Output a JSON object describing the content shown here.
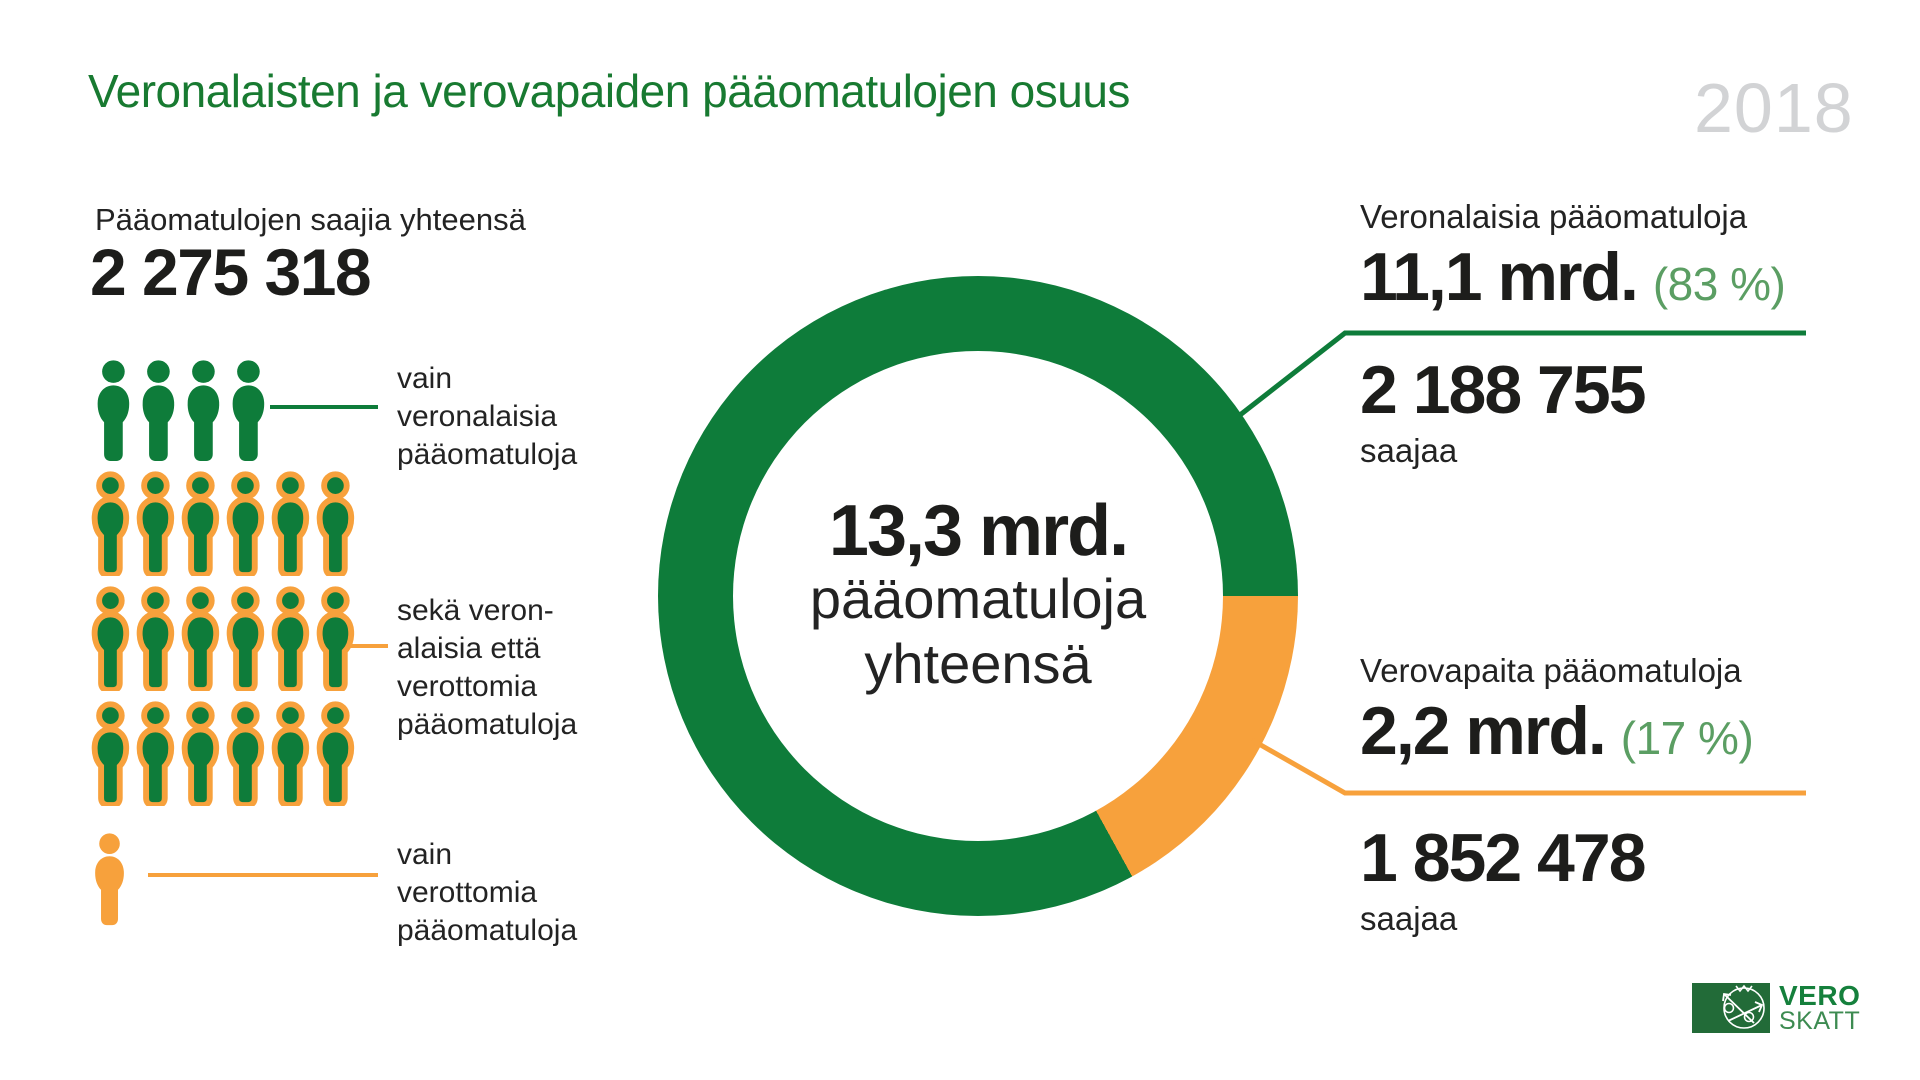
{
  "page": {
    "title": "Veronalaisten ja verovapaiden pääomatulojen osuus",
    "year": "2018"
  },
  "colors": {
    "green": "#0E7C3A",
    "title_green": "#187A31",
    "light_green": "#5B9E63",
    "orange": "#F7A13C",
    "dark_text": "#232323",
    "year_gray": "#D2D3D5",
    "logo_green": "#226B38"
  },
  "total_recipients": {
    "label": "Pääomatulojen saajia yhteensä",
    "value": "2 275 318"
  },
  "legend1": {
    "l1": "vain",
    "l2": "veronalaisia",
    "l3": "pääomatuloja"
  },
  "legend2": {
    "l1": "sekä veron-",
    "l2": "alaisia että",
    "l3": "verottomia",
    "l4": "pääomatuloja"
  },
  "legend3": {
    "l1": "vain",
    "l2": "verottomia",
    "l3": "pääomatuloja"
  },
  "donut_center": {
    "line1": "13,3 mrd.",
    "line2": "pääomatuloja",
    "line3": "yhteensä"
  },
  "taxable": {
    "label": "Veronalaisia pääomatuloja",
    "amount": "11,1 mrd.",
    "percent": "(83 %)",
    "recipients": "2 188 755",
    "recipients_label": "saajaa"
  },
  "tax_free": {
    "label": "Verovapaita pääomatuloja",
    "amount": "2,2 mrd.",
    "percent": "(17 %)",
    "recipients": "1 852 478",
    "recipients_label": "saajaa"
  },
  "logo": {
    "line1": "VERO",
    "line2": "SKATT"
  },
  "chart_data": {
    "type": "pie",
    "subtype": "donut",
    "title": "Veronalaisten ja verovapaiden pääomatulojen osuus",
    "year": 2018,
    "center_total": {
      "value": 13.3,
      "unit": "mrd.",
      "label": "pääomatuloja yhteensä"
    },
    "slices": [
      {
        "name": "Veronalaisia pääomatuloja",
        "value_mrd": 11.1,
        "percent": 83,
        "recipients": 2188755,
        "color": "#0E7C3A"
      },
      {
        "name": "Verovapaita pääomatuloja",
        "value_mrd": 2.2,
        "percent": 17,
        "recipients": 1852478,
        "color": "#F7A13C"
      }
    ],
    "donut_orange_start_deg_from_top": 90,
    "recipients_total": 2275318,
    "pictogram_rows": [
      {
        "style": "solid-green",
        "count": 4
      },
      {
        "style": "outlined",
        "count": 6
      },
      {
        "style": "outlined",
        "count": 6
      },
      {
        "style": "outlined",
        "count": 6
      },
      {
        "style": "solid-orange",
        "count": 1
      }
    ]
  }
}
